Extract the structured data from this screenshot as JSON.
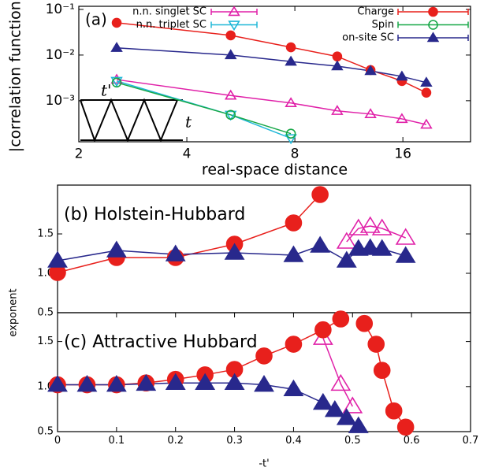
{
  "chart_data": [
    {
      "type": "line",
      "panel": "(a)",
      "xlabel": "real-space distance",
      "ylabel": "|correlation function|",
      "xscale": "log2",
      "yscale": "log10",
      "xlim": [
        2,
        24.7
      ],
      "ylim": [
        0.000126,
        0.117
      ],
      "xticks": [
        2,
        4,
        8,
        16
      ],
      "yticks": [
        {
          "value": 0.001,
          "label": "10⁻³"
        },
        {
          "value": 0.01,
          "label": "10⁻²"
        },
        {
          "value": 0.1,
          "label": "10⁻¹"
        }
      ],
      "annotations": [
        "t'",
        "t"
      ],
      "series": [
        {
          "name": "n.n. singlet SC",
          "color": "#e020a8",
          "marker": "triangle",
          "filled": false,
          "x": [
            2.55,
            5.3,
            7.8,
            10.5,
            13,
            15.9,
            18.6
          ],
          "values": [
            0.0029,
            0.0013,
            0.00089,
            0.0006,
            0.00051,
            0.0004,
            0.0003
          ]
        },
        {
          "name": "n.n. triplet SC",
          "color": "#20b8d8",
          "marker": "triangle-down",
          "filled": false,
          "x": [
            2.55,
            5.3,
            7.8
          ],
          "values": [
            0.0027,
            0.00049,
            0.00015
          ]
        },
        {
          "name": "Charge",
          "color": "#e8201c",
          "marker": "circle",
          "filled": true,
          "x": [
            2.55,
            5.3,
            7.8,
            10.5,
            13,
            15.9,
            18.6
          ],
          "values": [
            0.051,
            0.027,
            0.0148,
            0.0093,
            0.0047,
            0.0027,
            0.0015
          ]
        },
        {
          "name": "Spin",
          "color": "#18a848",
          "marker": "circle",
          "filled": false,
          "x": [
            2.55,
            5.3,
            7.8
          ],
          "values": [
            0.0025,
            0.00049,
            0.00019
          ]
        },
        {
          "name": "on-site SC",
          "color": "#28288c",
          "marker": "triangle",
          "filled": true,
          "x": [
            2.55,
            5.3,
            7.8,
            10.5,
            13,
            15.9,
            18.6
          ],
          "values": [
            0.0144,
            0.01,
            0.0072,
            0.0057,
            0.0045,
            0.0034,
            0.0025
          ]
        }
      ]
    },
    {
      "type": "line",
      "title": "(b) Holstein-Hubbard",
      "ylabel": "exponent",
      "xlim": [
        0,
        0.7
      ],
      "ylim": [
        0.5,
        2.12
      ],
      "yticks": [
        0.5,
        {
          "value": 1,
          "label": "1.0"
        },
        1.5
      ],
      "series": [
        {
          "color": "#e020a8",
          "marker": "triangle",
          "filled": false,
          "x": [
            0.49,
            0.51,
            0.53,
            0.55,
            0.59
          ],
          "values": [
            1.4,
            1.57,
            1.6,
            1.57,
            1.45
          ]
        },
        {
          "color": "#e8201c",
          "marker": "circle",
          "filled": true,
          "x": [
            0,
            0.1,
            0.2,
            0.3,
            0.4,
            0.445
          ],
          "values": [
            1.01,
            1.2,
            1.2,
            1.37,
            1.64,
            2.0
          ]
        },
        {
          "color": "#28288c",
          "marker": "triangle",
          "filled": true,
          "x": [
            0,
            0.1,
            0.2,
            0.3,
            0.4,
            0.445,
            0.49,
            0.51,
            0.53,
            0.55,
            0.59
          ],
          "values": [
            1.16,
            1.29,
            1.24,
            1.26,
            1.23,
            1.35,
            1.16,
            1.31,
            1.32,
            1.31,
            1.22
          ]
        }
      ]
    },
    {
      "type": "line",
      "title": "(c) Attractive Hubbard",
      "xlabel": "-t'",
      "xlim": [
        0,
        0.7
      ],
      "ylim": [
        0.5,
        1.82
      ],
      "xticks": [
        0,
        0.1,
        0.2,
        0.3,
        0.4,
        0.5,
        0.6,
        0.7
      ],
      "yticks": [
        0.5,
        {
          "value": 1,
          "label": "1.0"
        },
        1.5
      ],
      "series": [
        {
          "color": "#e020a8",
          "marker": "triangle",
          "filled": false,
          "x": [
            0.45,
            0.48,
            0.5
          ],
          "values": [
            1.54,
            1.03,
            0.78
          ]
        },
        {
          "color": "#e8201c",
          "marker": "circle",
          "filled": true,
          "x": [
            0,
            0.05,
            0.1,
            0.15,
            0.2,
            0.25,
            0.3,
            0.35,
            0.4,
            0.45,
            0.48,
            0.5,
            0.52,
            0.54,
            0.55,
            0.57,
            0.59
          ],
          "values": [
            1.02,
            1.02,
            1.02,
            1.04,
            1.08,
            1.13,
            1.19,
            1.34,
            1.47,
            1.63,
            1.75,
            null,
            1.7,
            1.47,
            1.18,
            0.73,
            0.55
          ]
        },
        {
          "color": "#28288c",
          "marker": "triangle",
          "filled": true,
          "x": [
            0,
            0.05,
            0.1,
            0.15,
            0.2,
            0.25,
            0.3,
            0.35,
            0.4,
            0.45,
            0.47,
            0.49,
            0.51
          ],
          "values": [
            1.02,
            1.02,
            1.02,
            1.03,
            1.04,
            1.04,
            1.04,
            1.02,
            0.97,
            0.82,
            0.74,
            0.65,
            0.56
          ]
        }
      ]
    }
  ]
}
